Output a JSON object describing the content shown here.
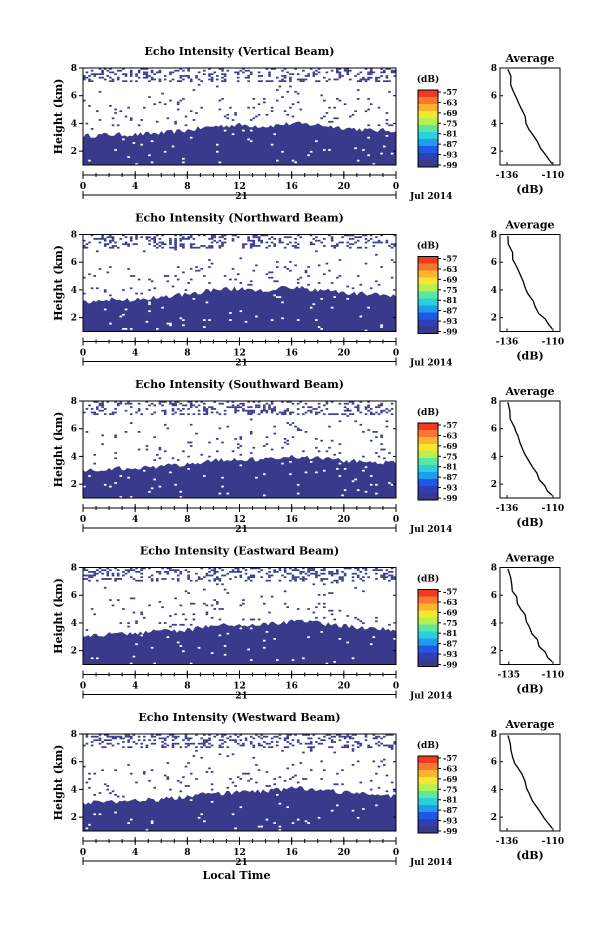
{
  "figure": {
    "xlabel": "Local Time",
    "date_label": "Jul 2014",
    "day_label": "21",
    "colorbar_unit": "(dB)",
    "colorbar_ticks": [
      "-57",
      "-63",
      "-69",
      "-75",
      "-81",
      "-87",
      "-93",
      "-99"
    ],
    "colorbar_colors": [
      "#f03c1e",
      "#f87830",
      "#fcb42c",
      "#f5e632",
      "#b8f050",
      "#5ce6a0",
      "#2ad0dc",
      "#1e9cf0",
      "#2058e6",
      "#3040b4",
      "#3a3a8c"
    ],
    "profile_title": "Average",
    "profile_xlabel": "(dB)",
    "beam_fill_color": "#3a3a8c",
    "background_color": "#ffffff"
  },
  "chart_data": [
    {
      "type": "heatmap",
      "title": "Echo Intensity (Vertical Beam)",
      "ylabel": "Height (km)",
      "x_ticks": [
        "0",
        "4",
        "8",
        "12",
        "16",
        "20",
        "0"
      ],
      "y_ticks": [
        "2",
        "4",
        "6",
        "8"
      ],
      "xlim": [
        0,
        24
      ],
      "ylim": [
        1,
        8
      ],
      "echo_top_km": [
        [
          0,
          3.1
        ],
        [
          2,
          3.2
        ],
        [
          4,
          3.2
        ],
        [
          6,
          3.3
        ],
        [
          8,
          3.5
        ],
        [
          10,
          3.8
        ],
        [
          12,
          3.9
        ],
        [
          14,
          3.8
        ],
        [
          16,
          4.0
        ],
        [
          18,
          3.9
        ],
        [
          20,
          3.7
        ],
        [
          22,
          3.5
        ],
        [
          24,
          3.5
        ]
      ],
      "profile": {
        "x_ticks": [
          "-136",
          "-110"
        ],
        "y_ticks": [
          "2",
          "4",
          "6",
          "8"
        ],
        "xlim": [
          -140,
          -106
        ],
        "ylim": [
          1,
          8
        ],
        "points": [
          [
            -135.5,
            7.9
          ],
          [
            -134.5,
            7.4
          ],
          [
            -133.5,
            6.8
          ],
          [
            -132.5,
            6.3
          ],
          [
            -131,
            5.9
          ],
          [
            -129.5,
            5.4
          ],
          [
            -128,
            5.0
          ],
          [
            -126.5,
            4.5
          ],
          [
            -125,
            4.0
          ],
          [
            -123.5,
            3.6
          ],
          [
            -121.5,
            3.2
          ],
          [
            -119.5,
            2.7
          ],
          [
            -117.5,
            2.2
          ],
          [
            -115,
            1.8
          ],
          [
            -112.5,
            1.4
          ],
          [
            -110.5,
            1.1
          ]
        ]
      }
    },
    {
      "type": "heatmap",
      "title": "Echo Intensity (Northward Beam)",
      "ylabel": "Height (km)",
      "x_ticks": [
        "0",
        "4",
        "8",
        "12",
        "16",
        "20",
        "0"
      ],
      "y_ticks": [
        "2",
        "4",
        "6",
        "8"
      ],
      "xlim": [
        0,
        24
      ],
      "ylim": [
        1,
        8
      ],
      "echo_top_km": [
        [
          0,
          3.1
        ],
        [
          2,
          3.3
        ],
        [
          4,
          3.3
        ],
        [
          6,
          3.5
        ],
        [
          8,
          3.7
        ],
        [
          10,
          4.0
        ],
        [
          12,
          4.1
        ],
        [
          14,
          4.0
        ],
        [
          16,
          4.2
        ],
        [
          18,
          4.0
        ],
        [
          20,
          3.8
        ],
        [
          22,
          3.7
        ],
        [
          24,
          3.6
        ]
      ],
      "profile": {
        "x_ticks": [
          "-136",
          "-110"
        ],
        "y_ticks": [
          "2",
          "4",
          "6",
          "8"
        ],
        "xlim": [
          -140,
          -106
        ],
        "ylim": [
          1,
          8
        ],
        "points": [
          [
            -135.5,
            7.9
          ],
          [
            -134.5,
            7.3
          ],
          [
            -133.5,
            6.7
          ],
          [
            -132.5,
            6.2
          ],
          [
            -131,
            5.8
          ],
          [
            -129.5,
            5.4
          ],
          [
            -128,
            5.0
          ],
          [
            -126.5,
            4.6
          ],
          [
            -125,
            4.1
          ],
          [
            -123.5,
            3.7
          ],
          [
            -121.5,
            3.2
          ],
          [
            -119.5,
            2.8
          ],
          [
            -117.5,
            2.3
          ],
          [
            -115,
            1.9
          ],
          [
            -112.5,
            1.5
          ],
          [
            -110.5,
            1.2
          ]
        ]
      }
    },
    {
      "type": "heatmap",
      "title": "Echo Intensity (Southward Beam)",
      "ylabel": "Height (km)",
      "x_ticks": [
        "0",
        "4",
        "8",
        "12",
        "16",
        "20",
        "0"
      ],
      "y_ticks": [
        "2",
        "4",
        "6",
        "8"
      ],
      "xlim": [
        0,
        24
      ],
      "ylim": [
        1,
        8
      ],
      "echo_top_km": [
        [
          0,
          3.0
        ],
        [
          2,
          3.1
        ],
        [
          4,
          3.2
        ],
        [
          6,
          3.3
        ],
        [
          8,
          3.4
        ],
        [
          10,
          3.7
        ],
        [
          12,
          3.8
        ],
        [
          14,
          3.8
        ],
        [
          16,
          4.0
        ],
        [
          18,
          3.9
        ],
        [
          20,
          3.7
        ],
        [
          22,
          3.6
        ],
        [
          24,
          3.5
        ]
      ],
      "profile": {
        "x_ticks": [
          "-136",
          "-110"
        ],
        "y_ticks": [
          "2",
          "4",
          "6",
          "8"
        ],
        "xlim": [
          -140,
          -106
        ],
        "ylim": [
          1,
          8
        ],
        "points": [
          [
            -135.5,
            7.9
          ],
          [
            -134.5,
            7.3
          ],
          [
            -133.5,
            6.7
          ],
          [
            -132.5,
            6.1
          ],
          [
            -131,
            5.8
          ],
          [
            -129.5,
            5.5
          ],
          [
            -128,
            5.0
          ],
          [
            -126.5,
            4.5
          ],
          [
            -125,
            4.1
          ],
          [
            -123.5,
            3.6
          ],
          [
            -121.5,
            3.2
          ],
          [
            -119.5,
            2.8
          ],
          [
            -117.5,
            2.3
          ],
          [
            -115,
            1.9
          ],
          [
            -112.5,
            1.5
          ],
          [
            -110.5,
            1.2
          ]
        ]
      }
    },
    {
      "type": "heatmap",
      "title": "Echo Intensity (Eastward Beam)",
      "ylabel": "Height (km)",
      "x_ticks": [
        "0",
        "4",
        "8",
        "12",
        "16",
        "20",
        "0"
      ],
      "y_ticks": [
        "2",
        "4",
        "6",
        "8"
      ],
      "xlim": [
        0,
        24
      ],
      "ylim": [
        1,
        8
      ],
      "echo_top_km": [
        [
          0,
          3.0
        ],
        [
          2,
          3.2
        ],
        [
          4,
          3.3
        ],
        [
          6,
          3.4
        ],
        [
          8,
          3.5
        ],
        [
          10,
          3.8
        ],
        [
          12,
          3.9
        ],
        [
          14,
          3.9
        ],
        [
          16,
          4.1
        ],
        [
          18,
          4.0
        ],
        [
          20,
          3.8
        ],
        [
          22,
          3.6
        ],
        [
          24,
          3.5
        ]
      ],
      "profile": {
        "x_ticks": [
          "-135",
          "-110"
        ],
        "y_ticks": [
          "2",
          "4",
          "6",
          "8"
        ],
        "xlim": [
          -140,
          -106
        ],
        "ylim": [
          1,
          8
        ],
        "points": [
          [
            -135.5,
            7.9
          ],
          [
            -134.5,
            7.3
          ],
          [
            -133.5,
            6.8
          ],
          [
            -132.5,
            6.3
          ],
          [
            -131,
            5.9
          ],
          [
            -129.5,
            5.4
          ],
          [
            -128,
            5.0
          ],
          [
            -126.5,
            4.6
          ],
          [
            -125,
            4.1
          ],
          [
            -123.5,
            3.7
          ],
          [
            -121.5,
            3.2
          ],
          [
            -119.5,
            2.8
          ],
          [
            -117.5,
            2.3
          ],
          [
            -115,
            1.9
          ],
          [
            -112.5,
            1.5
          ],
          [
            -110.5,
            1.2
          ]
        ]
      }
    },
    {
      "type": "heatmap",
      "title": "Echo Intensity (Westward Beam)",
      "ylabel": "Height (km)",
      "x_ticks": [
        "0",
        "4",
        "8",
        "12",
        "16",
        "20",
        "0"
      ],
      "y_ticks": [
        "2",
        "4",
        "6",
        "8"
      ],
      "xlim": [
        0,
        24
      ],
      "ylim": [
        1,
        8
      ],
      "echo_top_km": [
        [
          0,
          3.0
        ],
        [
          2,
          3.1
        ],
        [
          4,
          3.2
        ],
        [
          6,
          3.3
        ],
        [
          8,
          3.5
        ],
        [
          10,
          3.7
        ],
        [
          12,
          3.8
        ],
        [
          14,
          3.9
        ],
        [
          16,
          4.1
        ],
        [
          18,
          4.0
        ],
        [
          20,
          3.8
        ],
        [
          22,
          3.6
        ],
        [
          24,
          3.5
        ]
      ],
      "profile": {
        "x_ticks": [
          "-136",
          "-110"
        ],
        "y_ticks": [
          "2",
          "4",
          "6",
          "8"
        ],
        "xlim": [
          -140,
          -106
        ],
        "ylim": [
          1,
          8
        ],
        "points": [
          [
            -135.5,
            7.9
          ],
          [
            -134.5,
            7.3
          ],
          [
            -133.5,
            6.8
          ],
          [
            -132.5,
            6.3
          ],
          [
            -131,
            5.9
          ],
          [
            -129.5,
            5.5
          ],
          [
            -128,
            5.1
          ],
          [
            -126.5,
            4.6
          ],
          [
            -125,
            4.1
          ],
          [
            -123.5,
            3.7
          ],
          [
            -121.5,
            3.2
          ],
          [
            -119.5,
            2.8
          ],
          [
            -117.5,
            2.3
          ],
          [
            -115,
            1.9
          ],
          [
            -112.5,
            1.5
          ],
          [
            -110.5,
            1.2
          ]
        ]
      }
    }
  ]
}
